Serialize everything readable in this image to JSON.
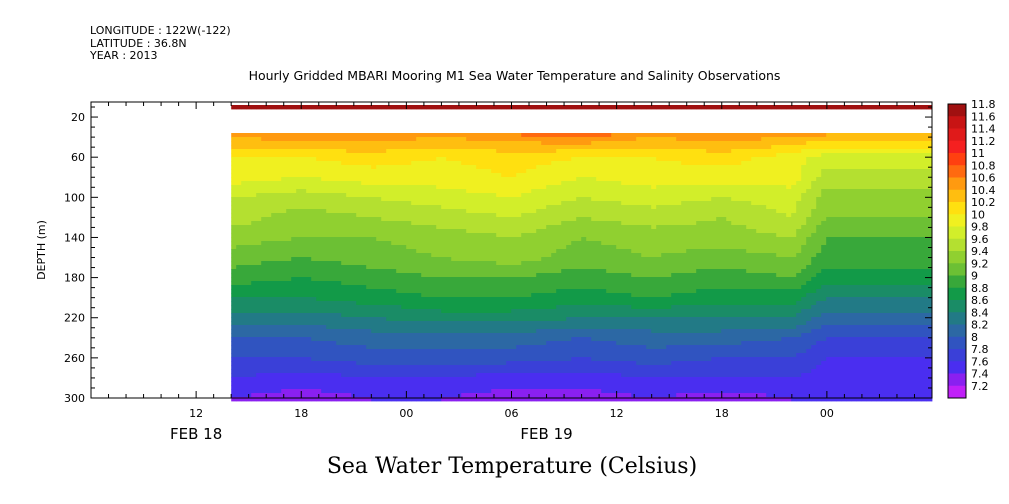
{
  "meta": {
    "longitude": "LONGITUDE : 122W(-122)",
    "latitude": "LATITUDE : 36.8N",
    "year": "YEAR : 2013"
  },
  "title": "Hourly Gridded MBARI Mooring M1 Sea Water Temperature and Salinity Observations",
  "variable_title": "Sea Water Temperature (Celsius)",
  "chart_data": {
    "type": "heatmap",
    "title": "Hourly Gridded MBARI Mooring M1 Sea Water Temperature and Salinity Observations",
    "subtitle": "Sea Water Temperature (Celsius)",
    "ylabel": "DEPTH (m)",
    "xlabel": "",
    "ylim": [
      300,
      5
    ],
    "xlim_hours": [
      6,
      54
    ],
    "y_ticks": [
      20,
      60,
      100,
      140,
      180,
      220,
      260,
      300
    ],
    "x_ticks": [
      {
        "hour": 12,
        "label": "12"
      },
      {
        "hour": 18,
        "label": "18"
      },
      {
        "hour": 24,
        "label": "00"
      },
      {
        "hour": 30,
        "label": "06"
      },
      {
        "hour": 36,
        "label": "12"
      },
      {
        "hour": 42,
        "label": "18"
      },
      {
        "hour": 48,
        "label": "00"
      }
    ],
    "date_labels": [
      {
        "hour": 12,
        "label": "FEB 18"
      },
      {
        "hour": 32,
        "label": "FEB 19"
      }
    ],
    "data_start_hour": 14,
    "depth_levels": [
      10,
      40,
      60,
      80,
      100,
      120,
      140,
      160,
      180,
      200,
      220,
      240,
      260,
      280,
      300
    ],
    "missing_depths": [
      20
    ],
    "times": [
      14,
      18,
      22,
      26,
      30,
      34,
      38,
      42,
      46,
      48
    ],
    "values": [
      [
        11.7,
        11.7,
        11.7,
        11.7,
        11.7,
        11.7,
        11.7,
        11.7,
        11.7,
        11.7
      ],
      [
        10.4,
        10.5,
        10.5,
        10.4,
        10.5,
        10.6,
        10.4,
        10.5,
        10.4,
        10.3
      ],
      [
        10.0,
        10.0,
        10.1,
        10.0,
        10.1,
        10.0,
        10.0,
        10.1,
        9.9,
        9.7
      ],
      [
        9.9,
        9.8,
        9.9,
        9.9,
        10.0,
        9.8,
        9.9,
        9.9,
        9.9,
        9.5
      ],
      [
        9.6,
        9.5,
        9.6,
        9.7,
        9.8,
        9.6,
        9.7,
        9.6,
        9.7,
        9.3
      ],
      [
        9.5,
        9.3,
        9.4,
        9.5,
        9.6,
        9.4,
        9.5,
        9.4,
        9.6,
        9.2
      ],
      [
        9.3,
        9.2,
        9.2,
        9.3,
        9.4,
        9.2,
        9.3,
        9.3,
        9.4,
        9.0
      ],
      [
        9.1,
        9.0,
        9.1,
        9.2,
        9.3,
        9.1,
        9.2,
        9.1,
        9.2,
        8.9
      ],
      [
        8.9,
        8.8,
        8.9,
        9.0,
        9.0,
        8.9,
        9.0,
        8.9,
        9.0,
        8.7
      ],
      [
        8.6,
        8.6,
        8.7,
        8.8,
        8.8,
        8.7,
        8.8,
        8.7,
        8.7,
        8.4
      ],
      [
        8.3,
        8.3,
        8.4,
        8.5,
        8.5,
        8.4,
        8.4,
        8.4,
        8.4,
        8.1
      ],
      [
        8.0,
        8.0,
        8.1,
        8.1,
        8.1,
        8.0,
        8.1,
        8.1,
        8.0,
        7.8
      ],
      [
        7.8,
        7.8,
        7.9,
        7.9,
        7.9,
        7.8,
        7.9,
        7.8,
        7.8,
        7.6
      ],
      [
        7.6,
        7.5,
        7.6,
        7.6,
        7.5,
        7.5,
        7.6,
        7.6,
        7.6,
        7.5
      ],
      [
        7.4,
        7.3,
        7.4,
        7.4,
        7.3,
        7.3,
        7.4,
        7.3,
        7.4,
        7.4
      ]
    ],
    "colorbar": {
      "labels": [
        "11.8",
        "11.6",
        "11.4",
        "11.2",
        "11",
        "10.8",
        "10.6",
        "10.4",
        "10.2",
        "10",
        "9.8",
        "9.6",
        "9.4",
        "9.2",
        "9",
        "8.8",
        "8.6",
        "8.4",
        "8.2",
        "8",
        "7.8",
        "7.6",
        "7.4",
        "7.2"
      ],
      "levels": [
        11.8,
        11.6,
        11.4,
        11.2,
        11.0,
        10.8,
        10.6,
        10.4,
        10.2,
        10.0,
        9.8,
        9.6,
        9.4,
        9.2,
        9.0,
        8.8,
        8.6,
        8.4,
        8.2,
        8.0,
        7.8,
        7.6,
        7.4,
        7.2
      ],
      "colors": [
        "#a01010",
        "#c81414",
        "#e01a1a",
        "#f52020",
        "#ff4010",
        "#ff6a10",
        "#ff9a10",
        "#ffbe10",
        "#ffe010",
        "#f0f020",
        "#d2ee2a",
        "#b4e030",
        "#90d030",
        "#6cc034",
        "#38a83a",
        "#129a48",
        "#1a8c66",
        "#227a86",
        "#2c68a4",
        "#3054c0",
        "#3a40d8",
        "#4a2ef0",
        "#8a20f0",
        "#c020f8"
      ]
    }
  }
}
